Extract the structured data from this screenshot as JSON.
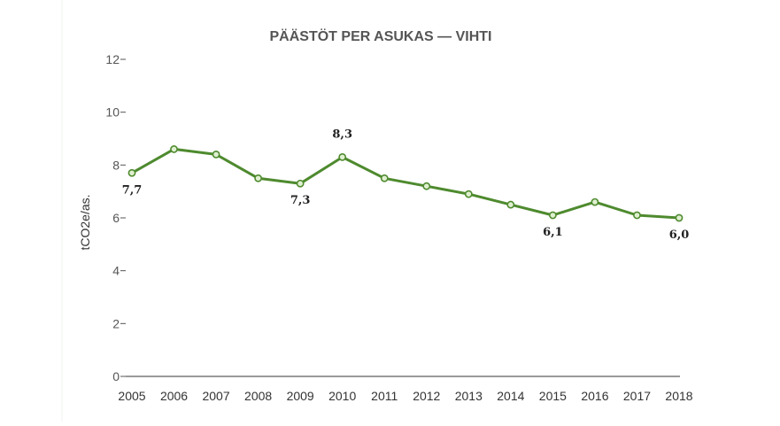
{
  "chart_data": {
    "type": "line",
    "title": "PÄÄSTÖT PER ASUKAS — VIHTI",
    "xlabel": "",
    "ylabel": "tCO2e/as.",
    "ylim": [
      0,
      12
    ],
    "yticks": [
      "0",
      "2",
      "4",
      "6",
      "8",
      "10",
      "12"
    ],
    "categories": [
      "2005",
      "2006",
      "2007",
      "2008",
      "2009",
      "2010",
      "2011",
      "2012",
      "2013",
      "2014",
      "2015",
      "2016",
      "2017",
      "2018"
    ],
    "series": [
      {
        "values": [
          7.7,
          8.6,
          8.4,
          7.5,
          7.3,
          8.3,
          7.5,
          7.2,
          6.9,
          6.5,
          6.1,
          6.6,
          6.1,
          6.0
        ],
        "color": "#4e8a2e"
      }
    ],
    "data_labels": [
      {
        "index": 0,
        "text": "7,7",
        "placement": "below"
      },
      {
        "index": 4,
        "text": "7,3",
        "placement": "below"
      },
      {
        "index": 5,
        "text": "8,3",
        "placement": "above"
      },
      {
        "index": 10,
        "text": "6,1",
        "placement": "below"
      },
      {
        "index": 13,
        "text": "6,0",
        "placement": "below"
      }
    ],
    "grid": false,
    "legend": "none"
  }
}
